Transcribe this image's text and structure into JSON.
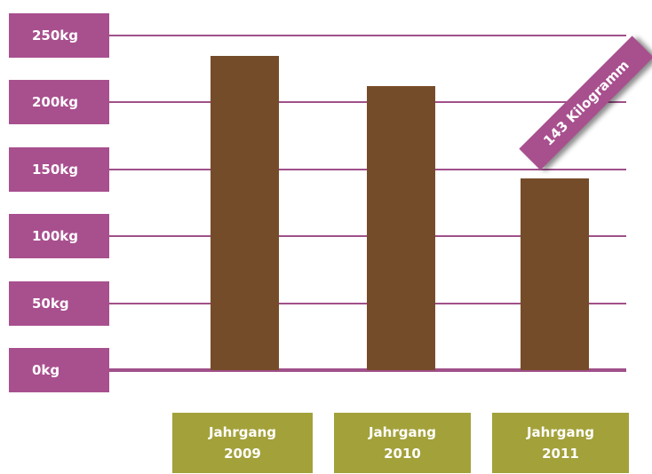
{
  "chart_data": {
    "type": "bar",
    "categories": [
      "Jahrgang 2009",
      "Jahrgang 2010",
      "Jahrgang 2011"
    ],
    "values": [
      235,
      212,
      143
    ],
    "value_labels": [
      null,
      null,
      "143 Kilogramm"
    ],
    "color": "#754c29",
    "ylim": [
      0,
      250
    ],
    "yticks": [
      {
        "value": 0,
        "label": "0kg"
      },
      {
        "value": 50,
        "label": "50kg"
      },
      {
        "value": 100,
        "label": "100kg"
      },
      {
        "value": 150,
        "label": "150kg"
      },
      {
        "value": 200,
        "label": "200kg"
      },
      {
        "value": 250,
        "label": "250kg"
      }
    ],
    "grid": true
  }
}
